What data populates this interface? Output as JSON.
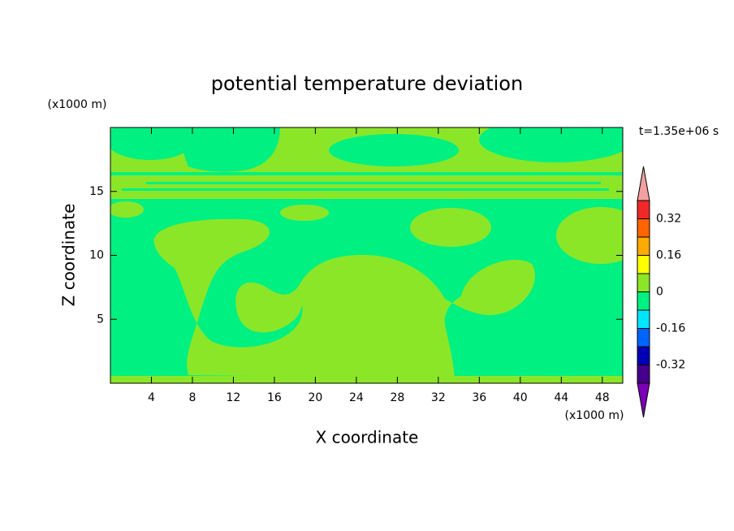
{
  "chart_data": {
    "type": "contour",
    "title": "potential temperature deviation",
    "x_label": "X coordinate",
    "y_label": "Z coordinate",
    "x_unit": "(x1000 m)",
    "y_unit": "(x1000 m)",
    "annotation": "t=1.35e+06 s",
    "xlim": [
      0,
      50
    ],
    "xticks": [
      4,
      8,
      12,
      16,
      20,
      24,
      28,
      32,
      36,
      40,
      44,
      48
    ],
    "ylim": [
      0,
      20
    ],
    "yticks": [
      5,
      10,
      15
    ],
    "colorbar": {
      "clim": [
        -0.4,
        0.4
      ],
      "ticks": [
        -0.32,
        -0.16,
        0,
        0.16,
        0.32
      ],
      "colors": [
        "#7d00b4",
        "#46008c",
        "#0000b4",
        "#0064ff",
        "#00e6ff",
        "#00f082",
        "#8ce628",
        "#ffff00",
        "#ffaa00",
        "#ff6400",
        "#f02828",
        "#f4a0a0"
      ]
    }
  }
}
